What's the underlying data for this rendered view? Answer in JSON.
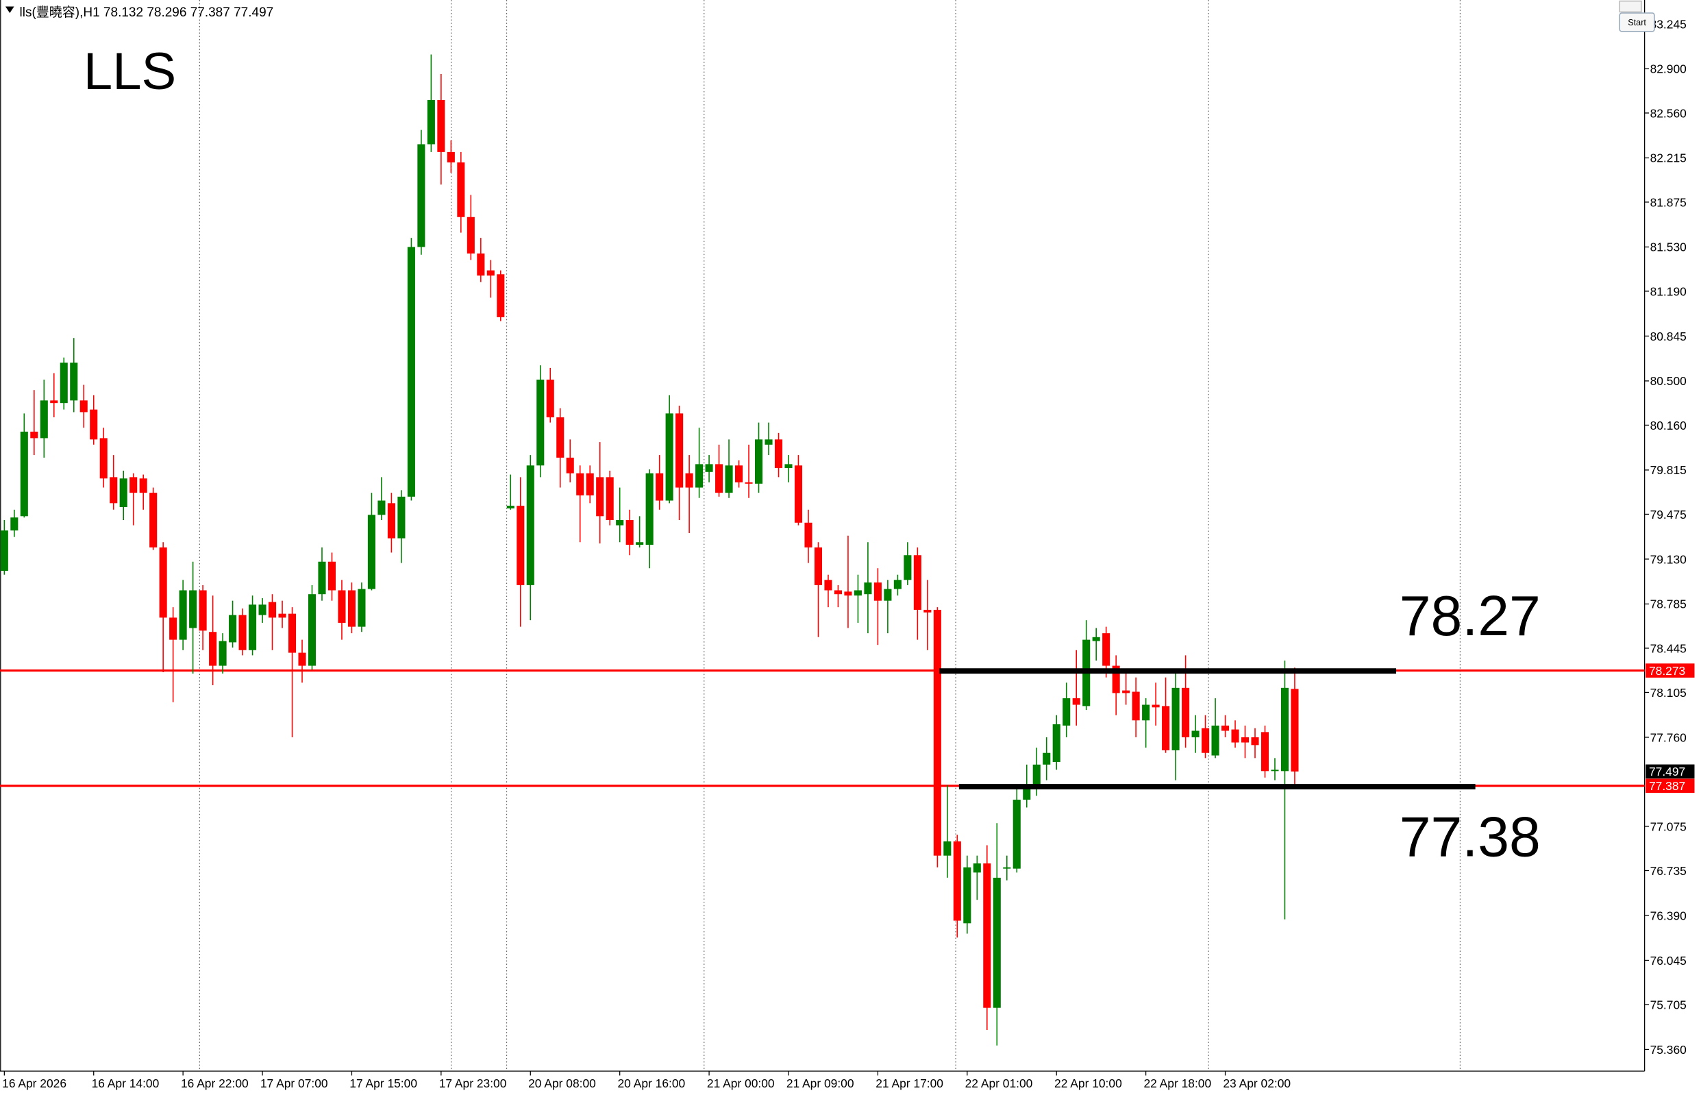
{
  "toolbar": {
    "button": "Start"
  },
  "chart_data": {
    "type": "candlestick",
    "title": "lls(豐曉容),H1  78.132 78.296 77.387 77.497",
    "symbol": "LLS",
    "up_color": "#008000",
    "down_color": "#ff0000",
    "ylim": [
      75.193,
      83.429
    ],
    "yticks": [
      83.245,
      {
        "value": 82.9,
        "label": "82.900"
      },
      {
        "value": 82.56,
        "label": "82.560"
      },
      82.215,
      81.875,
      {
        "value": 81.53,
        "label": "81.530"
      },
      {
        "value": 81.19,
        "label": "81.190"
      },
      80.845,
      {
        "value": 80.5,
        "label": "80.500"
      },
      {
        "value": 80.16,
        "label": "80.160"
      },
      79.815,
      79.475,
      {
        "value": 79.13,
        "label": "79.130"
      },
      78.785,
      78.445,
      78.105,
      {
        "value": 77.76,
        "label": "77.760"
      },
      77.075,
      76.735,
      {
        "value": 76.39,
        "label": "76.390"
      },
      76.045,
      75.705,
      {
        "value": 75.36,
        "label": "75.360"
      }
    ],
    "categories": [
      "16 Apr 2026",
      null,
      null,
      null,
      null,
      null,
      null,
      null,
      null,
      "16 Apr 14:00",
      null,
      null,
      null,
      null,
      null,
      null,
      null,
      null,
      "16 Apr 22:00",
      null,
      null,
      null,
      null,
      null,
      null,
      null,
      "17 Apr 07:00",
      null,
      null,
      null,
      null,
      null,
      null,
      null,
      null,
      "17 Apr 15:00",
      null,
      null,
      null,
      null,
      null,
      null,
      null,
      null,
      "17 Apr 23:00",
      null,
      null,
      null,
      null,
      null,
      null,
      null,
      null,
      "20 Apr 08:00",
      null,
      null,
      null,
      null,
      null,
      null,
      null,
      null,
      "20 Apr 16:00",
      null,
      null,
      null,
      null,
      null,
      null,
      null,
      null,
      "21 Apr 00:00",
      null,
      null,
      null,
      null,
      null,
      null,
      null,
      "21 Apr 09:00",
      null,
      null,
      null,
      null,
      null,
      null,
      null,
      null,
      "21 Apr 17:00",
      null,
      null,
      null,
      null,
      null,
      null,
      null,
      null,
      "22 Apr 01:00",
      null,
      null,
      null,
      null,
      null,
      null,
      null,
      null,
      "22 Apr 10:00",
      null,
      null,
      null,
      null,
      null,
      null,
      null,
      null,
      "22 Apr 18:00",
      null,
      null,
      null,
      null,
      null,
      null,
      null,
      "23 Apr 02:00",
      null,
      null,
      null,
      null,
      null,
      null,
      null
    ],
    "open": [
      79.04,
      79.35,
      79.46,
      80.11,
      80.06,
      80.35,
      80.33,
      80.35,
      80.35,
      80.28,
      80.06,
      79.76,
      79.53,
      79.76,
      79.75,
      79.64,
      79.22,
      78.68,
      78.51,
      78.6,
      78.89,
      78.57,
      78.31,
      78.49,
      78.7,
      78.43,
      78.7,
      78.8,
      78.71,
      78.71,
      78.41,
      78.31,
      78.86,
      79.11,
      78.89,
      78.89,
      78.61,
      78.9,
      79.47,
      79.56,
      79.29,
      79.61,
      81.53,
      82.32,
      82.66,
      82.26,
      82.18,
      81.76,
      81.48,
      81.35,
      81.32,
      79.52,
      79.54,
      78.93,
      79.85,
      80.51,
      80.22,
      79.91,
      79.79,
      79.79,
      79.76,
      79.76,
      79.39,
      79.43,
      79.24,
      79.24,
      79.79,
      79.58,
      80.25,
      79.79,
      79.68,
      79.8,
      79.86,
      79.64,
      79.85,
      79.72,
      79.71,
      80.01,
      80.05,
      79.83,
      79.85,
      79.41,
      79.22,
      78.97,
      78.89,
      78.88,
      78.85,
      78.86,
      78.95,
      78.81,
      78.9,
      78.97,
      79.16,
      78.74,
      78.74,
      76.85,
      76.96,
      76.33,
      76.72,
      76.79,
      75.68,
      76.75,
      76.75,
      77.28,
      77.36,
      77.55,
      77.57,
      77.85,
      78.06,
      78.0,
      78.5,
      78.56,
      78.31,
      78.12,
      78.11,
      77.89,
      78.01,
      78.0,
      77.66,
      78.14,
      77.76,
      77.83,
      77.62,
      77.85,
      77.82,
      77.76,
      77.76,
      77.8,
      77.5,
      77.5,
      78.132
    ],
    "high": [
      79.43,
      79.51,
      80.25,
      80.43,
      80.51,
      80.56,
      80.68,
      80.83,
      80.47,
      80.39,
      80.14,
      79.93,
      79.81,
      79.79,
      79.78,
      79.68,
      79.26,
      78.76,
      78.97,
      79.11,
      78.93,
      78.85,
      78.56,
      78.81,
      78.75,
      78.85,
      78.83,
      78.86,
      78.81,
      78.76,
      78.51,
      78.93,
      79.22,
      79.18,
      78.97,
      78.95,
      78.95,
      79.64,
      79.76,
      79.64,
      79.66,
      81.6,
      82.43,
      83.01,
      82.86,
      82.35,
      82.26,
      81.93,
      81.6,
      81.43,
      81.35,
      79.78,
      79.76,
      79.93,
      80.62,
      80.6,
      80.29,
      80.05,
      79.85,
      79.85,
      80.03,
      79.81,
      79.68,
      79.51,
      79.46,
      79.82,
      79.93,
      80.39,
      80.31,
      79.93,
      80.14,
      79.93,
      80.01,
      80.05,
      79.89,
      80.01,
      80.18,
      80.18,
      80.1,
      79.93,
      79.93,
      79.51,
      79.26,
      79.01,
      78.93,
      79.31,
      79.01,
      79.26,
      79.06,
      78.97,
      79.01,
      79.26,
      79.22,
      78.97,
      78.76,
      77.39,
      77.01,
      76.85,
      76.85,
      76.93,
      77.1,
      76.85,
      77.39,
      77.55,
      77.68,
      77.76,
      77.93,
      78.18,
      78.43,
      78.66,
      78.6,
      78.61,
      78.39,
      78.26,
      78.22,
      78.06,
      78.18,
      78.22,
      78.25,
      78.39,
      77.93,
      77.93,
      78.06,
      77.93,
      77.89,
      77.85,
      77.83,
      77.85,
      77.6,
      78.35,
      78.296
    ],
    "low": [
      79.01,
      79.3,
      79.45,
      79.93,
      79.91,
      80.22,
      80.28,
      80.26,
      80.14,
      80.01,
      79.68,
      79.51,
      79.43,
      79.39,
      79.51,
      79.2,
      78.26,
      78.03,
      78.43,
      78.25,
      78.43,
      78.16,
      78.25,
      78.45,
      78.39,
      78.39,
      78.64,
      78.43,
      78.6,
      77.76,
      78.18,
      78.28,
      78.81,
      78.81,
      78.51,
      78.56,
      78.57,
      78.89,
      79.43,
      79.18,
      79.1,
      79.58,
      81.47,
      82.26,
      82.01,
      82.1,
      81.64,
      81.43,
      81.26,
      81.14,
      80.96,
      79.51,
      78.61,
      78.66,
      79.76,
      80.18,
      79.68,
      79.72,
      79.26,
      79.56,
      79.25,
      79.39,
      79.26,
      79.16,
      79.22,
      79.06,
      79.51,
      79.56,
      79.43,
      79.33,
      79.6,
      79.72,
      79.61,
      79.6,
      79.68,
      79.6,
      79.64,
      79.93,
      79.76,
      79.72,
      79.39,
      79.1,
      78.53,
      78.76,
      78.76,
      78.6,
      78.64,
      78.56,
      78.47,
      78.56,
      78.85,
      78.93,
      78.51,
      78.43,
      76.76,
      76.68,
      76.22,
      76.25,
      76.51,
      75.51,
      75.39,
      76.66,
      76.72,
      77.22,
      77.31,
      77.43,
      77.51,
      77.76,
      77.85,
      77.97,
      78.35,
      78.22,
      77.93,
      78.01,
      77.76,
      77.68,
      77.85,
      77.64,
      77.43,
      77.68,
      77.64,
      77.6,
      77.6,
      77.76,
      77.68,
      77.6,
      77.6,
      77.45,
      77.43,
      76.36,
      77.387
    ],
    "close": [
      79.35,
      79.45,
      80.11,
      80.06,
      80.35,
      80.33,
      80.64,
      80.64,
      80.26,
      80.05,
      79.75,
      79.56,
      79.75,
      79.64,
      79.64,
      79.22,
      78.68,
      78.51,
      78.89,
      78.89,
      78.58,
      78.31,
      78.5,
      78.7,
      78.43,
      78.78,
      78.78,
      78.68,
      78.68,
      78.41,
      78.31,
      78.86,
      79.11,
      78.89,
      78.64,
      78.61,
      78.9,
      79.47,
      79.58,
      79.29,
      79.61,
      81.53,
      82.32,
      82.66,
      82.26,
      82.18,
      81.76,
      81.48,
      81.31,
      81.31,
      80.99,
      79.54,
      78.93,
      79.85,
      80.51,
      80.22,
      79.91,
      79.79,
      79.62,
      79.62,
      79.46,
      79.43,
      79.43,
      79.24,
      79.26,
      79.79,
      79.58,
      80.25,
      79.68,
      79.68,
      79.86,
      79.86,
      79.64,
      79.85,
      79.72,
      79.71,
      80.05,
      80.05,
      79.83,
      79.86,
      79.41,
      79.22,
      78.93,
      78.89,
      78.86,
      78.85,
      78.89,
      78.95,
      78.81,
      78.9,
      78.97,
      79.16,
      78.74,
      78.72,
      76.85,
      76.96,
      76.35,
      76.76,
      76.79,
      75.68,
      76.68,
      76.76,
      77.28,
      77.36,
      77.55,
      77.64,
      77.86,
      78.06,
      78.01,
      78.51,
      78.53,
      78.31,
      78.1,
      78.1,
      77.89,
      78.01,
      77.99,
      77.66,
      78.14,
      77.76,
      77.81,
      77.64,
      77.85,
      77.81,
      77.72,
      77.72,
      77.7,
      77.5,
      77.51,
      78.14,
      77.497
    ],
    "hlines": [
      {
        "value": 78.273,
        "color": "#ff0000"
      },
      {
        "value": 77.387,
        "color": "#ff0000"
      }
    ],
    "bid": 77.497,
    "levels": [
      {
        "value": 78.27,
        "color": "#000000"
      },
      {
        "value": 77.38,
        "color": "#000000"
      }
    ]
  }
}
